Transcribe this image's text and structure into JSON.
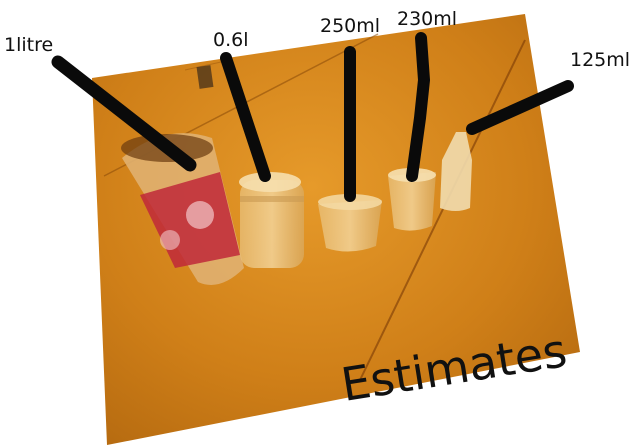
{
  "labels": {
    "one_litre": "1litre",
    "point_six": "0.6l",
    "ml250": "250ml",
    "ml230": "230ml",
    "ml125": "125ml"
  },
  "caption": "Estimates",
  "colors": {
    "table": "#d98a1c",
    "marker": "#0a0a0a",
    "background": "#ffffff"
  }
}
